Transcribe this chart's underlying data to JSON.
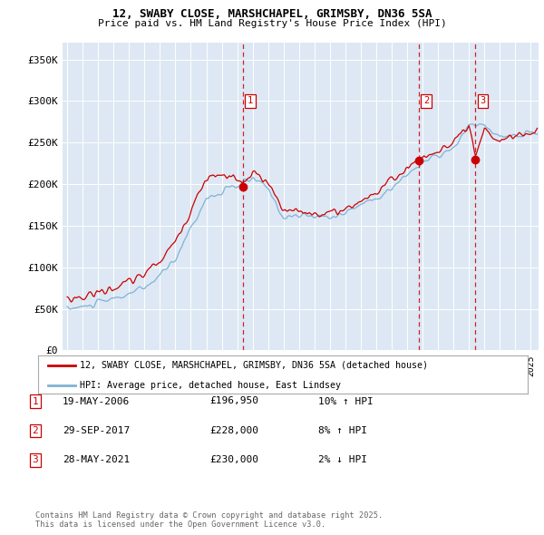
{
  "title1": "12, SWABY CLOSE, MARSHCHAPEL, GRIMSBY, DN36 5SA",
  "title2": "Price paid vs. HM Land Registry's House Price Index (HPI)",
  "ylim": [
    0,
    370000
  ],
  "yticks": [
    0,
    50000,
    100000,
    150000,
    200000,
    250000,
    300000,
    350000
  ],
  "ytick_labels": [
    "£0",
    "£50K",
    "£100K",
    "£150K",
    "£200K",
    "£250K",
    "£300K",
    "£350K"
  ],
  "xlim_start": 1994.7,
  "xlim_end": 2025.5,
  "plot_bg": "#dde8f4",
  "red_color": "#cc0000",
  "blue_color": "#7fb3d3",
  "vline_color": "#cc0000",
  "transactions": [
    {
      "num": 1,
      "date": "19-MAY-2006",
      "year": 2006.37,
      "price": 196950,
      "price_str": "£196,950",
      "pct": "10%",
      "dir": "↑"
    },
    {
      "num": 2,
      "date": "29-SEP-2017",
      "year": 2017.74,
      "price": 228000,
      "price_str": "£228,000",
      "pct": "8%",
      "dir": "↑"
    },
    {
      "num": 3,
      "date": "28-MAY-2021",
      "year": 2021.4,
      "price": 230000,
      "price_str": "£230,000",
      "pct": "2%",
      "dir": "↓"
    }
  ],
  "legend1": "12, SWABY CLOSE, MARSHCHAPEL, GRIMSBY, DN36 5SA (detached house)",
  "legend2": "HPI: Average price, detached house, East Lindsey",
  "footer": "Contains HM Land Registry data © Crown copyright and database right 2025.\nThis data is licensed under the Open Government Licence v3.0."
}
